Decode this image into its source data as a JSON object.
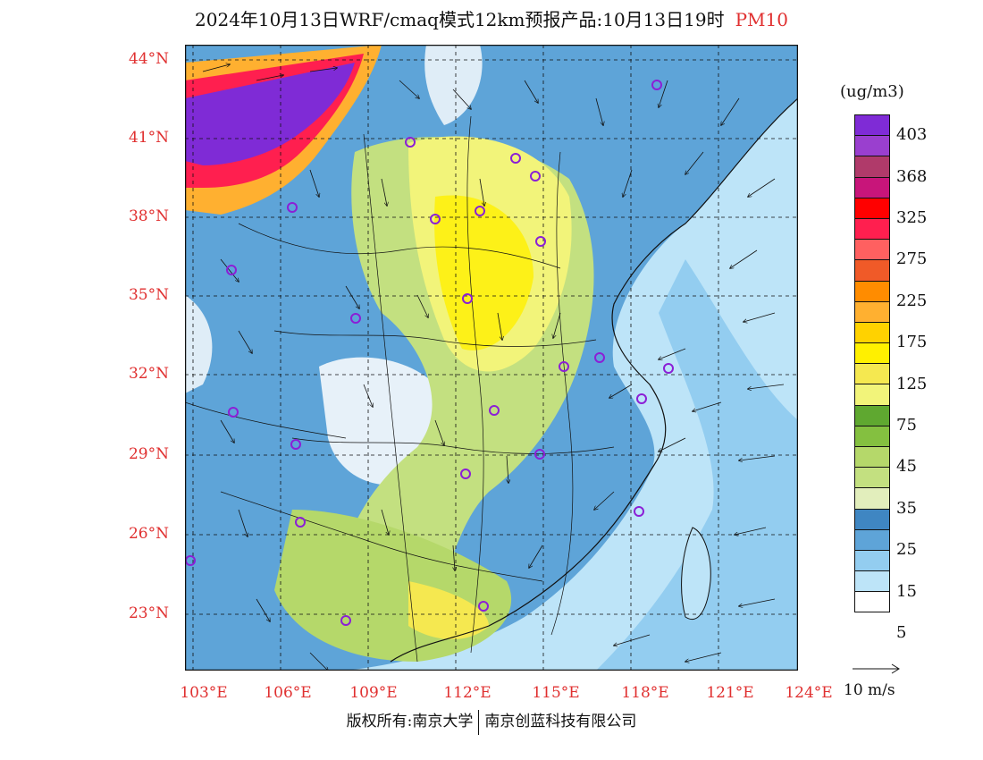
{
  "title": {
    "text": "2024年10月13日WRF/cmaq模式12km预报产品:10月13日19时",
    "pollutant": "PM10"
  },
  "units": "(ug/m3)",
  "latitude_labels": [
    "44°N",
    "41°N",
    "38°N",
    "35°N",
    "32°N",
    "29°N",
    "26°N",
    "23°N"
  ],
  "longitude_labels": [
    "103°E",
    "106°E",
    "109°E",
    "112°E",
    "115°E",
    "118°E",
    "121°E",
    "124°E"
  ],
  "colorbar": {
    "labels": [
      "403",
      "368",
      "325",
      "275",
      "225",
      "175",
      "125",
      "75",
      "45",
      "35",
      "25",
      "15",
      "5"
    ],
    "colors": [
      "#7f2bd6",
      "#9a3fcf",
      "#b03a6a",
      "#c8157a",
      "#ff0000",
      "#ff1f4f",
      "#ff6060",
      "#f05a28",
      "#ff8c00",
      "#ffb030",
      "#ffd200",
      "#fff000",
      "#f5e850",
      "#f2f47a",
      "#5fa830",
      "#84c040",
      "#b5d86a",
      "#c3e080",
      "#e2eebc",
      "#3f86c2",
      "#5ea4d8",
      "#93cdf0",
      "#bde4f8",
      "#ffffff"
    ]
  },
  "vector_reference": {
    "label": "10 m/s"
  },
  "footer": {
    "left": "版权所有:南京大学",
    "right": "南京创蓝科技有限公司"
  }
}
